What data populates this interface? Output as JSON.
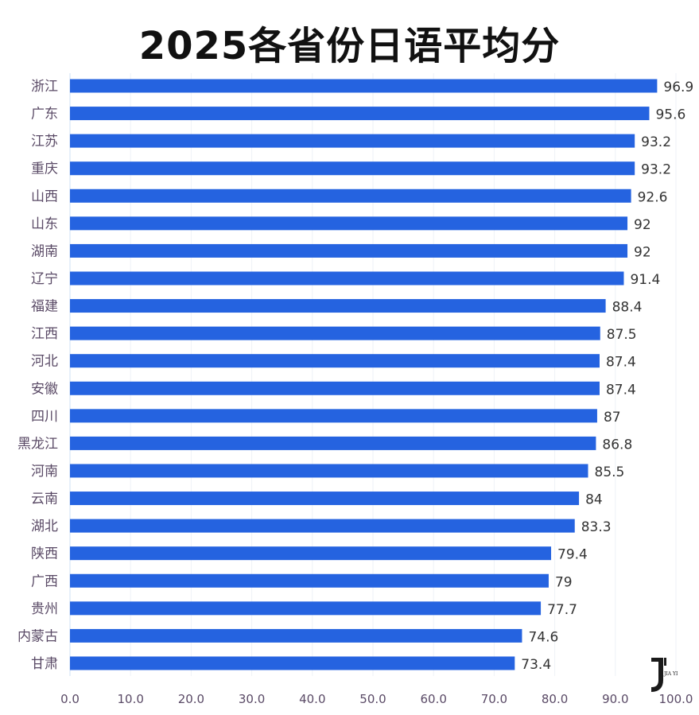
{
  "chart_data": {
    "type": "bar",
    "orientation": "horizontal",
    "title": "2025各省份日语平均分",
    "categories": [
      "浙江",
      "广东",
      "江苏",
      "重庆",
      "山西",
      "山东",
      "湖南",
      "辽宁",
      "福建",
      "江西",
      "河北",
      "安徽",
      "四川",
      "黑龙江",
      "河南",
      "云南",
      "湖北",
      "陕西",
      "广西",
      "贵州",
      "内蒙古",
      "甘肃"
    ],
    "values": [
      96.9,
      95.6,
      93.2,
      93.2,
      92.6,
      92,
      92,
      91.4,
      88.4,
      87.5,
      87.4,
      87.4,
      87,
      86.8,
      85.5,
      84,
      83.3,
      79.4,
      79,
      77.7,
      74.6,
      73.4
    ],
    "xlim": [
      0,
      100
    ],
    "xticks": [
      "0.0",
      "10.0",
      "20.0",
      "30.0",
      "40.0",
      "50.0",
      "60.0",
      "70.0",
      "80.0",
      "90.0",
      "100.0"
    ],
    "grid": true,
    "bar_color": "#2563e0"
  },
  "logo": {
    "text": "J' JIA YI"
  }
}
